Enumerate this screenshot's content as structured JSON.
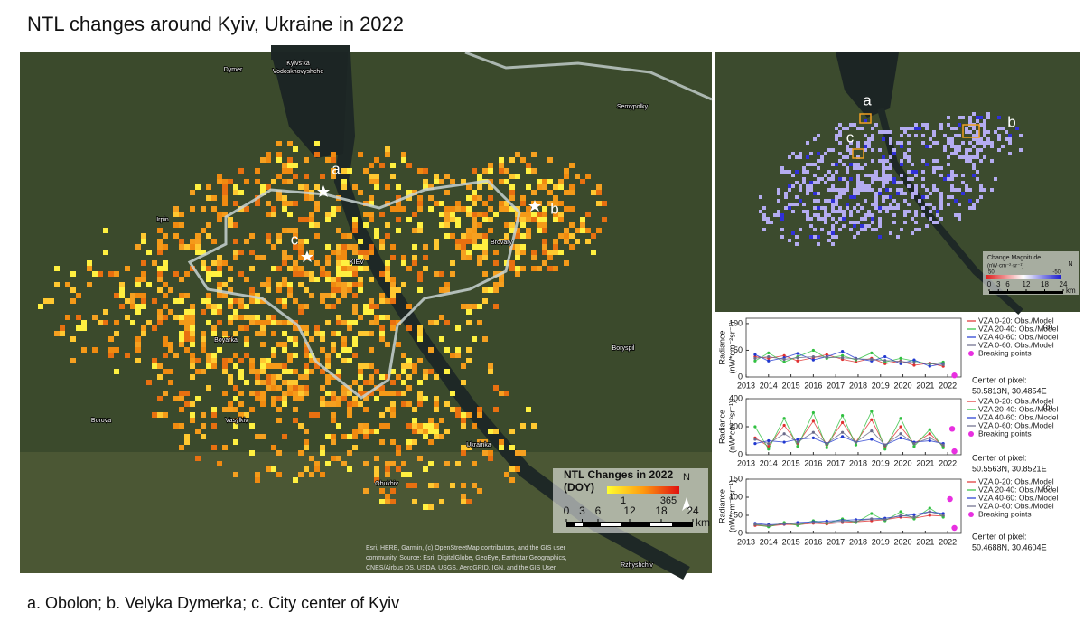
{
  "title": "NTL changes around Kyiv, Ukraine in 2022",
  "footer": "a. Obolon; b. Velyka Dymerka; c. City center of Kyiv",
  "left_map": {
    "places": [
      "Dymer",
      "Kyivs'ka",
      "Vodoskhovyshche",
      "Semypolky",
      "Irpin",
      "Brovary",
      "KIEV",
      "Boryspil",
      "Boyarka",
      "Borova",
      "Vasylkiv",
      "Obukhiv",
      "Ukrainka",
      "Rzhyshchiv"
    ],
    "sites": [
      "a",
      "b",
      "c"
    ],
    "legend_title": "NTL Changes in 2022",
    "legend_unit": "(DOY)",
    "legend_min": 1,
    "legend_max": 365,
    "north": "N",
    "scale_ticks": [
      0,
      3,
      6,
      12,
      18,
      24
    ],
    "scale_unit": "km",
    "attribution": [
      "Esri, HERE, Garmin, (c) OpenStreetMap contributors, and the GIS user",
      "community, Source: Esri, DigitalGlobe, GeoEye, Earthstar Geographics,",
      "CNES/Airbus DS, USDA, USGS, AeroGRID, IGN, and the GIS User"
    ]
  },
  "right_map": {
    "sites": [
      "a",
      "b",
      "c"
    ],
    "legend_title": "Change Magnitude",
    "legend_unit": "(nW·cm⁻²·sr⁻¹)",
    "legend_min": 50,
    "legend_max": -50,
    "north": "N",
    "scale_ticks": [
      0,
      3,
      6,
      12,
      18,
      24
    ],
    "scale_unit": "km"
  },
  "chart_data": [
    {
      "type": "scatter",
      "panel": "(a)",
      "y_label": [
        "Radiance",
        "(nW*cm⁻²sr⁻¹)"
      ],
      "center_label": "Center of pixel:",
      "center": "50.5813N, 30.4854E",
      "xlim": [
        2013,
        2022.6
      ],
      "xticks": [
        2013,
        2014,
        2015,
        2016,
        2017,
        2018,
        2019,
        2020,
        2021,
        2022
      ],
      "ylim": [
        0,
        110
      ],
      "yticks": [
        0,
        50,
        100
      ],
      "x": [
        2013.4,
        2014.0,
        2014.7,
        2015.3,
        2016.0,
        2016.6,
        2017.3,
        2017.9,
        2018.6,
        2019.2,
        2019.9,
        2020.5,
        2021.2,
        2021.8
      ],
      "series": [
        {
          "name": "VZA 0-20: Obs./Model",
          "color": "#e03030",
          "values": [
            38,
            35,
            40,
            30,
            36,
            42,
            33,
            28,
            35,
            25,
            30,
            22,
            26,
            20
          ]
        },
        {
          "name": "VZA 20-40: Obs./Model",
          "color": "#30c040",
          "values": [
            30,
            45,
            28,
            38,
            50,
            35,
            40,
            32,
            45,
            28,
            35,
            30,
            24,
            28
          ]
        },
        {
          "name": "VZA 40-60: Obs./Model",
          "color": "#2038d0",
          "values": [
            42,
            30,
            36,
            44,
            32,
            38,
            48,
            35,
            30,
            38,
            25,
            32,
            20,
            25
          ]
        },
        {
          "name": "VZA 0-60: Obs./Model",
          "color": "#6a6a8a",
          "values": [
            35,
            38,
            33,
            36,
            38,
            37,
            36,
            34,
            33,
            31,
            29,
            27,
            25,
            23
          ]
        }
      ],
      "breaking_points": {
        "name": "Breaking points",
        "color": "#e830e0",
        "x": [
          2022.3
        ],
        "values": [
          3
        ]
      }
    },
    {
      "type": "scatter",
      "panel": "(b)",
      "y_label": [
        "Radiance",
        "(nW*cm⁻²sr⁻¹)"
      ],
      "center_label": "Center of pixel:",
      "center": "50.5563N, 30.8521E",
      "xlim": [
        2013,
        2022.6
      ],
      "xticks": [
        2013,
        2014,
        2015,
        2016,
        2017,
        2018,
        2019,
        2020,
        2021,
        2022
      ],
      "ylim": [
        0,
        400
      ],
      "yticks": [
        0,
        200,
        400
      ],
      "x": [
        2013.4,
        2014.0,
        2014.7,
        2015.3,
        2016.0,
        2016.6,
        2017.3,
        2017.9,
        2018.6,
        2019.2,
        2019.9,
        2020.5,
        2021.2,
        2021.8
      ],
      "series": [
        {
          "name": "VZA 0-20: Obs./Model",
          "color": "#e03030",
          "values": [
            120,
            60,
            210,
            80,
            240,
            70,
            230,
            90,
            250,
            60,
            200,
            80,
            150,
            60
          ]
        },
        {
          "name": "VZA 20-40: Obs./Model",
          "color": "#30c040",
          "values": [
            200,
            40,
            260,
            60,
            300,
            50,
            280,
            70,
            310,
            40,
            260,
            60,
            180,
            50
          ]
        },
        {
          "name": "VZA 40-60: Obs./Model",
          "color": "#2038d0",
          "values": [
            80,
            100,
            90,
            110,
            120,
            80,
            130,
            90,
            110,
            70,
            120,
            90,
            100,
            80
          ]
        },
        {
          "name": "VZA 0-60: Obs./Model",
          "color": "#6a6a8a",
          "values": [
            110,
            80,
            150,
            90,
            160,
            80,
            160,
            90,
            170,
            70,
            150,
            80,
            120,
            70
          ]
        }
      ],
      "breaking_points": {
        "name": "Breaking points",
        "color": "#e830e0",
        "x": [
          2022.2,
          2022.3
        ],
        "values": [
          185,
          25
        ]
      }
    },
    {
      "type": "scatter",
      "panel": "(c)",
      "y_label": [
        "Radiance",
        "(nW*cm⁻²sr⁻¹)"
      ],
      "center_label": "Center of pixel:",
      "center": "50.4688N, 30.4604E",
      "xlim": [
        2013,
        2022.6
      ],
      "xticks": [
        2013,
        2014,
        2015,
        2016,
        2017,
        2018,
        2019,
        2020,
        2021,
        2022
      ],
      "ylim": [
        0,
        150
      ],
      "yticks": [
        0,
        50,
        100,
        150
      ],
      "x": [
        2013.4,
        2014.0,
        2014.7,
        2015.3,
        2016.0,
        2016.6,
        2017.3,
        2017.9,
        2018.6,
        2019.2,
        2019.9,
        2020.5,
        2021.2,
        2021.8
      ],
      "series": [
        {
          "name": "VZA 0-20: Obs./Model",
          "color": "#e03030",
          "values": [
            22,
            20,
            25,
            24,
            28,
            26,
            30,
            32,
            35,
            38,
            45,
            42,
            50,
            48
          ]
        },
        {
          "name": "VZA 20-40: Obs./Model",
          "color": "#30c040",
          "values": [
            25,
            18,
            30,
            22,
            35,
            28,
            40,
            30,
            55,
            35,
            60,
            40,
            70,
            45
          ]
        },
        {
          "name": "VZA 40-60: Obs./Model",
          "color": "#2038d0",
          "values": [
            28,
            24,
            26,
            30,
            32,
            34,
            36,
            38,
            40,
            42,
            48,
            52,
            60,
            55
          ]
        },
        {
          "name": "VZA 0-60: Obs./Model",
          "color": "#6a6a8a",
          "values": [
            25,
            22,
            27,
            26,
            30,
            30,
            34,
            34,
            40,
            38,
            50,
            45,
            60,
            50
          ]
        }
      ],
      "breaking_points": {
        "name": "Breaking points",
        "color": "#e830e0",
        "x": [
          2022.1,
          2022.3
        ],
        "values": [
          95,
          15
        ]
      }
    }
  ]
}
